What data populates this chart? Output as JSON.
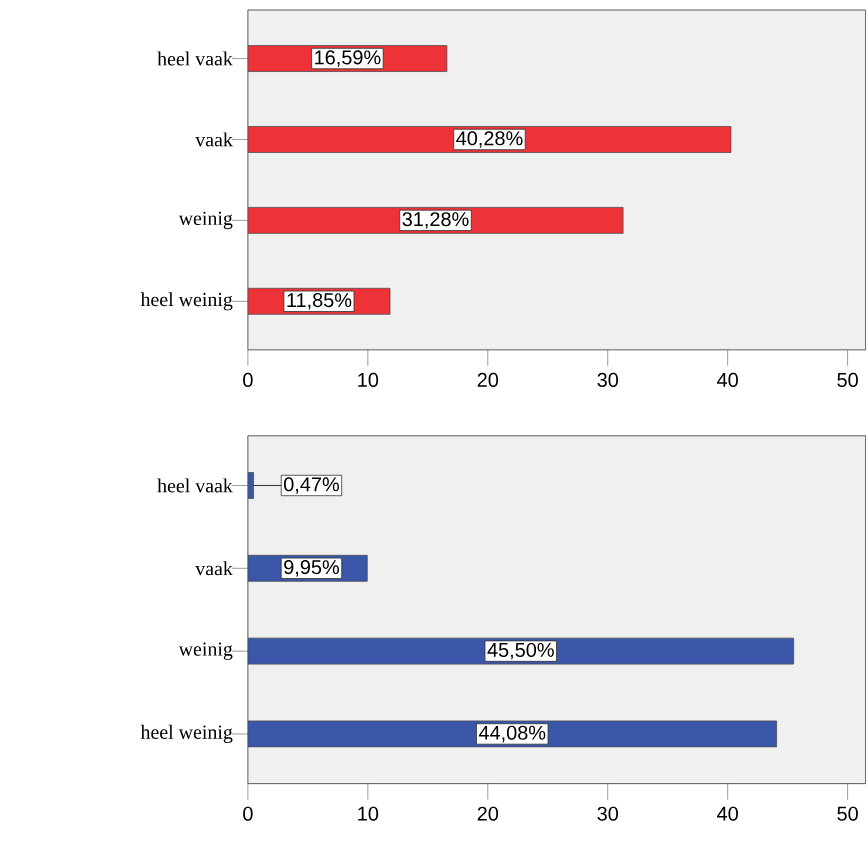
{
  "chart_data": [
    {
      "type": "bar",
      "orientation": "horizontal",
      "categories": [
        "heel vaak",
        "vaak",
        "weinig",
        "heel weinig"
      ],
      "values": [
        16.59,
        40.28,
        31.28,
        11.85
      ],
      "value_labels": [
        "16,59%",
        "40,28%",
        "31,28%",
        "11,85%"
      ],
      "color": "#ee3338",
      "xlim": [
        0,
        51.5
      ],
      "xticks": [
        0,
        10,
        20,
        30,
        40,
        50
      ],
      "grid": false
    },
    {
      "type": "bar",
      "orientation": "horizontal",
      "categories": [
        "heel vaak",
        "vaak",
        "weinig",
        "heel weinig"
      ],
      "values": [
        0.47,
        9.95,
        45.5,
        44.08
      ],
      "value_labels": [
        "0,47%",
        "9,95%",
        "45,50%",
        "44,08%"
      ],
      "color": "#3a56a8",
      "xlim": [
        0,
        51.5
      ],
      "xticks": [
        0,
        10,
        20,
        30,
        40,
        50
      ],
      "grid": false
    }
  ]
}
